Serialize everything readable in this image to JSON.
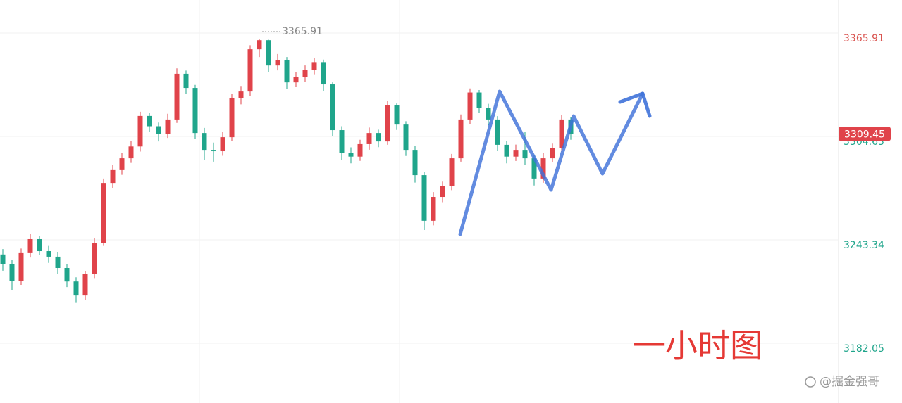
{
  "chart_data": {
    "type": "candlestick",
    "open": [
      3238.0,
      3232.5,
      3222.1,
      3238.8,
      3247.1,
      3240.0,
      3236.7,
      3230.0,
      3222.0,
      3213.7,
      3226.3,
      3245.0,
      3280.4,
      3288.0,
      3295.0,
      3302.0,
      3320.1,
      3314.0,
      3309.6,
      3318.0,
      3345.1,
      3336.7,
      3310.0,
      3300.0,
      3299.2,
      3307.5,
      3330.5,
      3334.6,
      3359.6,
      3365.0,
      3350.0,
      3353.4,
      3340.0,
      3343.0,
      3347.2,
      3352.0,
      3338.8,
      3311.7,
      3298.0,
      3296.0,
      3303.4,
      3310.0,
      3305.0,
      3326.3,
      3315.0,
      3300.0,
      3285.0,
      3258.0,
      3272.1,
      3278.4,
      3295.0,
      3318.0,
      3334.0,
      3325.0,
      3318.0,
      3303.0,
      3296.0,
      3300.0,
      3295.0,
      3283.0,
      3295.0,
      3301.0,
      3318.0
    ],
    "high": [
      3241.2,
      3235.0,
      3241.5,
      3250.3,
      3249.0,
      3243.1,
      3239.2,
      3232.1,
      3224.5,
      3228.0,
      3247.6,
      3283.0,
      3291.2,
      3298.4,
      3305.1,
      3322.6,
      3322.0,
      3316.2,
      3321.4,
      3348.3,
      3347.0,
      3338.5,
      3313.0,
      3304.3,
      3310.8,
      3333.0,
      3337.9,
      3362.0,
      3365.91,
      3365.3,
      3356.8,
      3355.0,
      3346.1,
      3350.0,
      3354.6,
      3353.5,
      3340.0,
      3314.0,
      3301.5,
      3306.0,
      3313.2,
      3312.0,
      3328.9,
      3327.5,
      3317.0,
      3302.3,
      3287.0,
      3275.0,
      3281.2,
      3297.6,
      3321.0,
      3336.4,
      3335.5,
      3327.3,
      3320.0,
      3305.2,
      3303.1,
      3310.6,
      3297.0,
      3298.2,
      3303.7,
      3320.8,
      3319.5
    ],
    "low": [
      3228.4,
      3216.8,
      3220.0,
      3236.2,
      3237.5,
      3233.0,
      3226.4,
      3218.7,
      3209.3,
      3211.2,
      3224.0,
      3243.1,
      3277.5,
      3285.2,
      3292.3,
      3299.0,
      3310.5,
      3305.0,
      3307.1,
      3316.0,
      3333.2,
      3306.4,
      3294.1,
      3293.0,
      3296.5,
      3305.2,
      3327.0,
      3332.1,
      3355.0,
      3346.2,
      3347.1,
      3336.3,
      3337.2,
      3340.5,
      3344.8,
      3335.0,
      3308.3,
      3294.2,
      3292.0,
      3293.5,
      3300.1,
      3301.6,
      3303.0,
      3311.8,
      3296.4,
      3280.6,
      3252.5,
      3255.3,
      3269.0,
      3276.1,
      3293.0,
      3315.2,
      3321.7,
      3314.6,
      3299.5,
      3292.0,
      3293.4,
      3291.2,
      3278.9,
      3280.5,
      3292.6,
      3299.0,
      3306.0
    ],
    "close": [
      3232.5,
      3222.1,
      3238.8,
      3247.1,
      3240.0,
      3236.7,
      3230.0,
      3222.0,
      3213.7,
      3226.3,
      3245.0,
      3280.4,
      3288.0,
      3295.0,
      3302.0,
      3320.1,
      3314.0,
      3309.6,
      3318.0,
      3345.1,
      3336.7,
      3310.0,
      3300.0,
      3299.2,
      3307.5,
      3330.5,
      3334.6,
      3359.6,
      3365.0,
      3350.0,
      3353.4,
      3340.0,
      3343.0,
      3347.2,
      3352.0,
      3338.8,
      3311.7,
      3298.0,
      3296.0,
      3303.4,
      3310.0,
      3305.0,
      3326.3,
      3315.0,
      3300.0,
      3285.0,
      3258.0,
      3272.1,
      3278.4,
      3295.0,
      3318.0,
      3334.0,
      3325.0,
      3318.0,
      3303.0,
      3296.0,
      3300.0,
      3295.0,
      3283.0,
      3295.0,
      3301.0,
      3318.0,
      3309.45
    ],
    "up_color": "#e0434a",
    "down_color": "#1fa58b",
    "ylim": [
      3149.96,
      3388.84
    ],
    "yticks": [
      3365.91,
      3304.63,
      3243.34,
      3182.05
    ],
    "grid": true,
    "last_price": 3309.45,
    "max_label": 3365.91,
    "annotation": "一小时图",
    "watermark": "@掘金强哥"
  }
}
